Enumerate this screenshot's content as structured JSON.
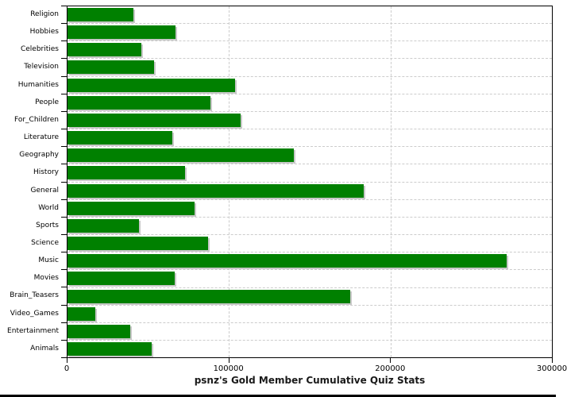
{
  "chart_data": {
    "type": "bar",
    "orientation": "horizontal",
    "title": "psnz's Gold Member Cumulative Quiz Stats",
    "categories": [
      "Religion",
      "Hobbies",
      "Celebrities",
      "Television",
      "Humanities",
      "People",
      "For_Children",
      "Literature",
      "Geography",
      "History",
      "General",
      "World",
      "Sports",
      "Science",
      "Music",
      "Movies",
      "Brain_Teasers",
      "Video_Games",
      "Entertainment",
      "Animals"
    ],
    "values": [
      41000,
      67000,
      45500,
      53500,
      104000,
      88500,
      107000,
      65000,
      140000,
      73000,
      183500,
      78500,
      44500,
      87000,
      272000,
      66500,
      175000,
      17000,
      39000,
      52000
    ],
    "xlabel": "",
    "ylabel": "",
    "xlim": [
      0,
      300000
    ],
    "x_ticks": [
      0,
      100000,
      200000,
      300000
    ],
    "x_tick_labels": [
      "0",
      "100000",
      "200000",
      "300000"
    ],
    "grid": "dashed",
    "legend": "none",
    "colors": {
      "bar": "#008000",
      "bar_shadow": "#c8c8c8",
      "gridline": "#cccccc",
      "axis": "#000000",
      "background": "#ffffff"
    }
  }
}
